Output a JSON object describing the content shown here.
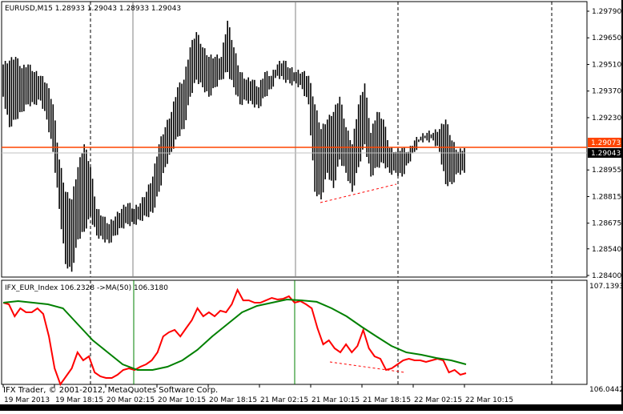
{
  "window": {
    "main_label": "EURUSD,M15  1.28933 1.29043 1.28933 1.29043",
    "sub_label": "IFX_EUR_Index 106.2328  ->MA(50) 106.3180",
    "copyright": "IFX Trader, © 2001-2012, MetaQuotes Software Corp.",
    "bid_tag": "1.29043",
    "ask_tag": "1.29073"
  },
  "colors": {
    "price_bars": "#000000",
    "ask_line": "#ff4500",
    "bid_line": "#c0c0c0",
    "index_line": "#ff0000",
    "ma_line": "#008000",
    "trendline": "#ff0000",
    "grid_solid": "#808080",
    "grid_dashed": "#000000"
  },
  "chart_data": [
    {
      "type": "bar",
      "series_kind": "ohlc-bars",
      "symbol": "EURUSD,M15",
      "ylim": [
        1.284,
        1.2979
      ],
      "yticks": [
        "1.29790",
        "1.29650",
        "1.29510",
        "1.29370",
        "1.29230",
        "1.28955",
        "1.28815",
        "1.28675",
        "1.28540",
        "1.28400"
      ],
      "xticks": [
        "19 Mar 2013",
        "19 Mar 18:15",
        "20 Mar 02:15",
        "20 Mar 10:15",
        "20 Mar 18:15",
        "21 Mar 02:15",
        "21 Mar 10:15",
        "21 Mar 18:15",
        "22 Mar 02:15",
        "22 Mar 10:15"
      ],
      "high": [
        1.2951,
        1.2953,
        1.2955,
        1.2949,
        1.2951,
        1.2947,
        1.2945,
        1.2941,
        1.293,
        1.2901,
        1.2884,
        1.288,
        1.2897,
        1.2909,
        1.2897,
        1.2875,
        1.2871,
        1.2867,
        1.2871,
        1.2875,
        1.2878,
        1.2875,
        1.2878,
        1.2884,
        1.2892,
        1.2909,
        1.2918,
        1.2926,
        1.2939,
        1.2943,
        1.296,
        1.2968,
        1.296,
        1.2955,
        1.2955,
        1.2955,
        1.2974,
        1.296,
        1.2947,
        1.2943,
        1.2943,
        1.2939,
        1.2947,
        1.2945,
        1.2951,
        1.2953,
        1.2949,
        1.2947,
        1.2947,
        1.2945,
        1.293,
        1.2917,
        1.2922,
        1.2926,
        1.2934,
        1.2918,
        1.2909,
        1.293,
        1.2941,
        1.2915,
        1.2926,
        1.2922,
        1.2907,
        1.2905,
        1.2907,
        1.2905,
        1.2911,
        1.2913,
        1.2915,
        1.2915,
        1.2917,
        1.2922,
        1.2911,
        1.2905,
        1.2907
      ],
      "low": [
        1.2934,
        1.2918,
        1.2922,
        1.2926,
        1.293,
        1.293,
        1.2932,
        1.2922,
        1.2905,
        1.2875,
        1.2846,
        1.2842,
        1.2859,
        1.2863,
        1.2871,
        1.2861,
        1.2859,
        1.2857,
        1.2861,
        1.2865,
        1.2867,
        1.2867,
        1.2869,
        1.2871,
        1.2873,
        1.2884,
        1.2897,
        1.2905,
        1.2913,
        1.2917,
        1.2934,
        1.2943,
        1.2939,
        1.2934,
        1.2939,
        1.2943,
        1.2947,
        1.2939,
        1.293,
        1.2932,
        1.293,
        1.2928,
        1.2934,
        1.2938,
        1.2945,
        1.2943,
        1.2941,
        1.2941,
        1.2938,
        1.293,
        1.2884,
        1.288,
        1.2894,
        1.2886,
        1.2901,
        1.2894,
        1.2884,
        1.2897,
        1.2909,
        1.2892,
        1.2897,
        1.2899,
        1.2894,
        1.2894,
        1.2892,
        1.2899,
        1.2905,
        1.2911,
        1.2911,
        1.2911,
        1.2905,
        1.2888,
        1.2888,
        1.2894,
        1.2894
      ],
      "bid_line": 1.29043,
      "ask_line": 1.29073
    },
    {
      "type": "line",
      "indicator": "IFX_EUR_Index",
      "ylim": [
        106.0442,
        107.1393
      ],
      "yticks": [
        "107.1393",
        "106.0442"
      ],
      "series": [
        {
          "name": "IFX_EUR_Index",
          "values": [
            106.961,
            106.944,
            106.817,
            106.902,
            106.859,
            106.859,
            106.902,
            106.842,
            106.604,
            106.265,
            106.095,
            106.18,
            106.265,
            106.435,
            106.35,
            106.392,
            106.222,
            106.18,
            106.163,
            106.163,
            106.197,
            106.248,
            106.265,
            106.248,
            106.282,
            106.307,
            106.35,
            106.435,
            106.604,
            106.647,
            106.672,
            106.604,
            106.689,
            106.774,
            106.902,
            106.817,
            106.859,
            106.817,
            106.876,
            106.859,
            106.944,
            107.097,
            106.986,
            106.986,
            106.961,
            106.961,
            106.986,
            107.012,
            106.995,
            107.003,
            107.029,
            106.961,
            106.978,
            106.944,
            106.902,
            106.689,
            106.52,
            106.562,
            106.477,
            106.435,
            106.52,
            106.435,
            106.503,
            106.672,
            106.477,
            106.392,
            106.367,
            106.248,
            106.265,
            106.307,
            106.35,
            106.367,
            106.35,
            106.35,
            106.333,
            106.35,
            106.367,
            106.35,
            106.222,
            106.248,
            106.197,
            106.214
          ]
        },
        {
          "name": "MA(50)",
          "values": [
            106.961,
            106.978,
            106.961,
            106.944,
            106.902,
            106.732,
            106.562,
            106.435,
            106.307,
            106.248,
            106.248,
            106.282,
            106.35,
            106.46,
            106.604,
            106.732,
            106.859,
            106.927,
            106.961,
            106.995,
            106.986,
            106.97,
            106.902,
            106.817,
            106.706,
            106.604,
            106.503,
            106.435,
            106.409,
            106.375,
            106.35,
            106.307
          ]
        }
      ]
    }
  ]
}
